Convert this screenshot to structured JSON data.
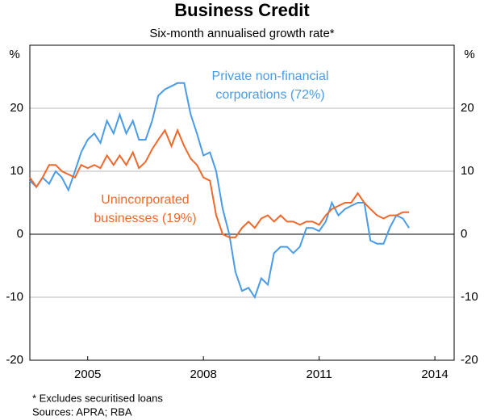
{
  "chart_data": {
    "type": "line",
    "title": "Business Credit",
    "subtitle": "Six-month annualised growth rate*",
    "y_unit": "%",
    "x": [
      2004,
      2004.17,
      2004.33,
      2004.5,
      2004.67,
      2004.83,
      2005,
      2005.17,
      2005.33,
      2005.5,
      2005.67,
      2005.83,
      2006,
      2006.17,
      2006.33,
      2006.5,
      2006.67,
      2006.83,
      2007,
      2007.17,
      2007.33,
      2007.5,
      2007.67,
      2007.83,
      2008,
      2008.17,
      2008.33,
      2008.5,
      2008.67,
      2008.83,
      2009,
      2009.17,
      2009.33,
      2009.5,
      2009.67,
      2009.83,
      2010,
      2010.17,
      2010.33,
      2010.5,
      2010.67,
      2010.83,
      2011,
      2011.17,
      2011.33,
      2011.5,
      2011.67,
      2011.83,
      2012,
      2012.17,
      2012.33,
      2012.5,
      2012.67,
      2012.83,
      2013,
      2013.17,
      2013.33,
      2013.5,
      2013.67,
      2013.83
    ],
    "series": [
      {
        "name": "Private non-financial corporations (72%)",
        "label_lines": [
          "Private non-financial",
          "corporations (72%)"
        ],
        "color": "#4a9be8",
        "values": [
          8.5,
          7.5,
          9,
          8,
          10,
          9,
          7,
          10,
          13,
          15,
          16,
          14.5,
          18,
          16,
          19,
          16,
          18,
          15,
          15,
          18,
          22,
          23,
          23.5,
          24,
          24,
          19,
          16,
          12.5,
          13,
          10,
          4,
          0,
          -6,
          -9,
          -8.5,
          -10,
          -7,
          -8,
          -3,
          -2,
          -2,
          -3,
          -2,
          1,
          1,
          0.5,
          2,
          5,
          3,
          4,
          4.5,
          5,
          5,
          -1,
          -1.5,
          -1.5,
          1,
          3,
          2.5,
          1
        ]
      },
      {
        "name": "Unincorporated businesses (19%)",
        "label_lines": [
          "Unincorporated",
          "businesses (19%)"
        ],
        "color": "#f0682a",
        "values": [
          9,
          7.5,
          9,
          11,
          11,
          10,
          9.5,
          9,
          11,
          10.5,
          11,
          10.5,
          12.5,
          11,
          12.5,
          11,
          13,
          10.5,
          11.5,
          13.5,
          15,
          16.5,
          14,
          16.5,
          14,
          12,
          11,
          9,
          8.5,
          3,
          0,
          -0.5,
          -0.5,
          1,
          2,
          1,
          2.5,
          3,
          2,
          3,
          2,
          2,
          1.5,
          2,
          2,
          1.5,
          3,
          4,
          4.5,
          5,
          5,
          6.5,
          5,
          4,
          3,
          2.5,
          3,
          3,
          3.5,
          3.5
        ]
      }
    ],
    "xlim": [
      2004,
      2015
    ],
    "xticks": [
      {
        "value": 2005.5,
        "label": "2005"
      },
      {
        "value": 2008.5,
        "label": "2008"
      },
      {
        "value": 2011.5,
        "label": "2011"
      },
      {
        "value": 2014.5,
        "label": "2014"
      }
    ],
    "ylim": [
      -20,
      30
    ],
    "yticks": [
      -20,
      -10,
      0,
      10,
      20
    ],
    "grid": true,
    "footnotes": [
      "*     Excludes securitised loans",
      "Sources: APRA; RBA"
    ]
  }
}
